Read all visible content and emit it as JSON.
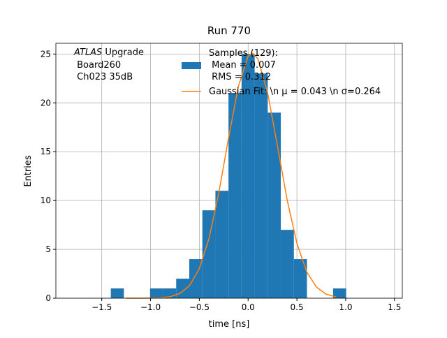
{
  "chart_data": {
    "type": "histogram",
    "title": "Run 770",
    "xlabel": "time [ns]",
    "ylabel": "Entries",
    "annotation": {
      "italic": "ATLAS",
      "rest": " Upgrade",
      "lines": [
        " Board260",
        " Ch023 35dB"
      ]
    },
    "xlim": [
      -1.97,
      1.58
    ],
    "ylim": [
      0,
      26.1
    ],
    "xticks": [
      {
        "value": -1.5,
        "label": "−1.5"
      },
      {
        "value": -1.0,
        "label": "−1.0"
      },
      {
        "value": -0.5,
        "label": "−0.5"
      },
      {
        "value": 0,
        "label": "0.0"
      },
      {
        "value": 0.5,
        "label": "0.5"
      },
      {
        "value": 1.0,
        "label": "1.0"
      },
      {
        "value": 1.5,
        "label": "1.5"
      }
    ],
    "yticks": [
      0,
      5,
      10,
      15,
      20,
      25
    ],
    "grid": true,
    "histogram": {
      "name": [
        "Samples (129):",
        " Mean = 0.007",
        " RMS = 0.312"
      ],
      "color": "#1f77b4",
      "bins": [
        -1.407,
        -1.273,
        -1.139,
        -1.005,
        -0.871,
        -0.737,
        -0.603,
        -0.469,
        -0.335,
        -0.201,
        -0.067,
        0.067,
        0.201,
        0.335,
        0.469,
        0.603,
        0.737,
        0.871,
        1.005
      ],
      "counts": [
        1,
        0,
        0,
        1,
        1,
        2,
        4,
        9,
        11,
        21,
        25,
        23,
        19,
        7,
        4,
        0,
        0,
        1
      ]
    },
    "fit": {
      "name": "Gaussian Fit: \\n μ = 0.043 \\n σ=0.264",
      "color": "#ff7f0e",
      "x": [
        -1.25,
        -1.1,
        -1.0,
        -0.9,
        -0.8,
        -0.7,
        -0.6,
        -0.5,
        -0.4,
        -0.3,
        -0.2,
        -0.1,
        0,
        0.043,
        0.1,
        0.2,
        0.3,
        0.4,
        0.5,
        0.6,
        0.7,
        0.8,
        0.9
      ],
      "values": [
        0.0,
        0.002,
        0.01,
        0.04,
        0.15,
        0.48,
        1.29,
        3.03,
        6.14,
        10.79,
        16.44,
        21.68,
        24.77,
        25.1,
        24.52,
        21.03,
        15.63,
        10.06,
        5.61,
        2.71,
        1.14,
        0.41,
        0.13
      ]
    }
  }
}
